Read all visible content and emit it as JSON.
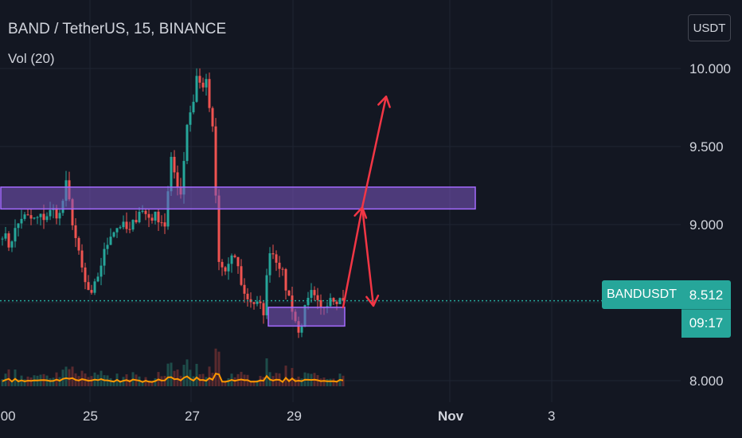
{
  "legend": {
    "symbol_line": "BAND / TetherUS, 15, BINANCE",
    "volume_label": "Vol (20)"
  },
  "currency_button": "USDT",
  "last_price": {
    "symbol": "BANDUSDT",
    "price": "8.512",
    "countdown": "09:17"
  },
  "colors": {
    "background": "#131722",
    "up": "#26a69a",
    "down": "#ef5350",
    "zone_fill": "#7e57c2",
    "arrow": "#f23645",
    "volume_ma": "#ff9800",
    "price_line": "#26a69a"
  },
  "chart_data": {
    "type": "candlestick",
    "symbol": "BANDUSDT",
    "exchange": "BINANCE",
    "timeframe": "15",
    "y_axis": {
      "range": [
        7.95,
        10.05
      ],
      "ticks": [
        "10.000",
        "9.500",
        "9.000",
        "8.000"
      ]
    },
    "x_axis": {
      "ticks": [
        ":00",
        "25",
        "27",
        "29",
        "Nov",
        "3"
      ]
    },
    "grid": true,
    "price_path": [
      [
        0,
        8.95
      ],
      [
        2,
        8.87
      ],
      [
        6,
        9.05
      ],
      [
        10,
        9.03
      ],
      [
        13,
        9.05
      ],
      [
        16,
        9.09
      ],
      [
        18,
        9.06
      ],
      [
        20,
        9.25
      ],
      [
        24,
        8.8
      ],
      [
        26,
        8.62
      ],
      [
        28,
        8.53
      ],
      [
        31,
        8.75
      ],
      [
        34,
        8.95
      ],
      [
        37,
        9.0
      ],
      [
        40,
        8.95
      ],
      [
        43,
        9.1
      ],
      [
        46,
        9.05
      ],
      [
        49,
        9.05
      ],
      [
        51,
        9.0
      ],
      [
        53,
        9.4
      ],
      [
        56,
        9.2
      ],
      [
        58,
        9.65
      ],
      [
        60,
        9.8
      ],
      [
        61,
        9.95
      ],
      [
        62,
        9.9
      ],
      [
        64,
        9.9
      ],
      [
        66,
        9.6
      ],
      [
        68,
        8.75
      ],
      [
        70,
        8.7
      ],
      [
        73,
        8.8
      ],
      [
        76,
        8.55
      ],
      [
        79,
        8.5
      ],
      [
        82,
        8.45
      ],
      [
        84,
        8.85
      ],
      [
        87,
        8.75
      ],
      [
        89,
        8.6
      ],
      [
        91,
        8.47
      ],
      [
        93,
        8.3
      ],
      [
        95,
        8.45
      ],
      [
        97,
        8.55
      ],
      [
        100,
        8.45
      ],
      [
        103,
        8.55
      ],
      [
        105,
        8.53
      ],
      [
        107,
        8.51
      ]
    ],
    "last_close": 8.512,
    "annotations": {
      "resistance_zone": [
        9.1,
        9.24
      ],
      "support_zone": [
        8.35,
        8.47
      ],
      "arrows": "from about 8.47 up to about 9.11, then either up to about 9.82 or back down to about 8.48"
    },
    "volume_indicator": "Vol (20)"
  }
}
